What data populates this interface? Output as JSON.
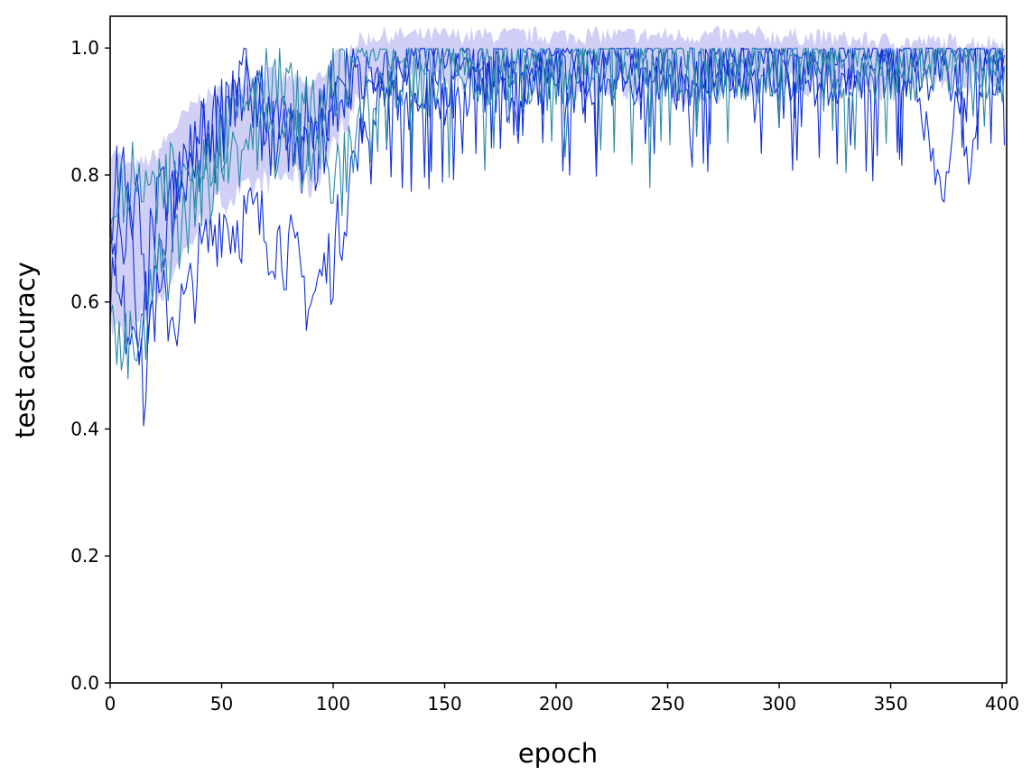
{
  "chart_data": {
    "type": "line",
    "title": "",
    "xlabel": "epoch",
    "ylabel": "test accuracy",
    "xlim": [
      0,
      402
    ],
    "ylim": [
      0,
      1.05
    ],
    "xticks": [
      0,
      50,
      100,
      150,
      200,
      250,
      300,
      350,
      400
    ],
    "xtick_labels": [
      "0",
      "50",
      "100",
      "150",
      "200",
      "250",
      "300",
      "350",
      "400"
    ],
    "yticks": [
      0.0,
      0.2,
      0.4,
      0.6,
      0.8,
      1.0
    ],
    "ytick_labels": [
      "0.0",
      "0.2",
      "0.4",
      "0.6",
      "0.8",
      "1.0"
    ],
    "grid": false,
    "legend": "none",
    "colors": {
      "series_a": "#1030d8",
      "series_b": "#2a8aa8",
      "band_fill": "#c8c8f4"
    },
    "band": {
      "x": [
        0,
        10,
        20,
        30,
        40,
        50,
        60,
        70,
        80,
        90,
        100,
        110,
        120,
        150,
        200,
        250,
        300,
        350,
        400
      ],
      "low": [
        0.56,
        0.55,
        0.6,
        0.66,
        0.72,
        0.76,
        0.77,
        0.79,
        0.8,
        0.78,
        0.84,
        0.92,
        0.95,
        0.95,
        0.94,
        0.93,
        0.94,
        0.94,
        0.95
      ],
      "high": [
        0.84,
        0.81,
        0.83,
        0.88,
        0.92,
        0.93,
        0.95,
        0.96,
        0.95,
        0.94,
        0.98,
        1.01,
        1.02,
        1.02,
        1.02,
        1.02,
        1.02,
        1.01,
        1.01
      ]
    },
    "series": [
      {
        "color": "#1030d8",
        "x": [
          0,
          3,
          6,
          9,
          12,
          15,
          20,
          25,
          30,
          35,
          40,
          45,
          50,
          55,
          60,
          65,
          70,
          75,
          80,
          85,
          90,
          95,
          100,
          105,
          110,
          115,
          120,
          125,
          130,
          135,
          140,
          145,
          150,
          160,
          170,
          180,
          190,
          200,
          220,
          240,
          260,
          280,
          300,
          320,
          340,
          360,
          374,
          380,
          390,
          400
        ],
        "y": [
          0.8,
          0.59,
          0.58,
          0.58,
          0.58,
          0.58,
          0.59,
          0.59,
          0.58,
          0.6,
          0.66,
          0.7,
          0.74,
          0.72,
          0.73,
          0.73,
          0.71,
          0.7,
          0.68,
          0.64,
          0.6,
          0.64,
          0.67,
          0.75,
          0.84,
          0.88,
          0.93,
          0.96,
          0.98,
          1.0,
          1.0,
          1.0,
          1.0,
          1.0,
          1.0,
          1.0,
          1.0,
          1.0,
          1.0,
          1.0,
          1.0,
          1.0,
          1.0,
          1.0,
          1.0,
          1.0,
          1.0,
          1.0,
          1.0,
          1.0
        ]
      },
      {
        "color": "#1030d8",
        "x": [
          0,
          3,
          6,
          9,
          12,
          15,
          20,
          25,
          30,
          35,
          40,
          45,
          50,
          55,
          60,
          65,
          70,
          75,
          80,
          85,
          90,
          95,
          100,
          105,
          110,
          115,
          120,
          125,
          130,
          135,
          140,
          145,
          150,
          160,
          170,
          180,
          190,
          200,
          210,
          220,
          240,
          260,
          280,
          300,
          320,
          340,
          360,
          374,
          380,
          390,
          400
        ],
        "y": [
          0.62,
          0.74,
          0.8,
          0.7,
          0.75,
          0.62,
          0.72,
          0.78,
          0.74,
          0.8,
          0.84,
          0.88,
          0.9,
          0.94,
          0.96,
          0.9,
          0.88,
          0.85,
          0.86,
          0.84,
          0.83,
          0.85,
          0.9,
          0.94,
          0.97,
          0.95,
          0.93,
          0.96,
          0.9,
          0.95,
          0.92,
          0.94,
          0.9,
          0.93,
          0.95,
          0.92,
          0.94,
          0.96,
          0.93,
          0.95,
          0.96,
          0.94,
          0.95,
          0.97,
          0.95,
          0.96,
          0.97,
          0.73,
          0.95,
          0.97,
          0.96
        ]
      },
      {
        "color": "#1030d8",
        "x": [
          0,
          3,
          6,
          9,
          12,
          15,
          20,
          25,
          30,
          35,
          40,
          45,
          50,
          55,
          60,
          65,
          70,
          75,
          80,
          85,
          90,
          95,
          100,
          105,
          110,
          115,
          120,
          125,
          130,
          135,
          140,
          145,
          150,
          160,
          170,
          180,
          190,
          200,
          220,
          240,
          260,
          280,
          300,
          320,
          340,
          360,
          380,
          385,
          390,
          400
        ],
        "y": [
          0.7,
          0.82,
          0.66,
          0.75,
          0.5,
          0.46,
          0.62,
          0.7,
          0.78,
          0.82,
          0.86,
          0.82,
          0.88,
          0.92,
          0.94,
          0.9,
          0.92,
          0.88,
          0.9,
          0.86,
          0.88,
          0.9,
          0.93,
          0.95,
          0.98,
          0.92,
          0.95,
          0.94,
          0.96,
          0.93,
          0.95,
          0.97,
          0.94,
          0.96,
          0.95,
          0.97,
          0.95,
          0.96,
          0.97,
          0.95,
          0.96,
          0.97,
          0.96,
          0.95,
          0.97,
          0.96,
          0.95,
          0.82,
          0.96,
          0.97
        ]
      },
      {
        "color": "#2a8aa8",
        "x": [
          0,
          3,
          6,
          9,
          12,
          15,
          20,
          25,
          30,
          35,
          40,
          45,
          50,
          55,
          60,
          65,
          70,
          75,
          80,
          85,
          90,
          95,
          100,
          105,
          110,
          115,
          120,
          125,
          130,
          135,
          140,
          150,
          160,
          170,
          180,
          200,
          220,
          240,
          260,
          280,
          300,
          320,
          340,
          360,
          380,
          400
        ],
        "y": [
          0.6,
          0.52,
          0.52,
          0.52,
          0.52,
          0.53,
          0.64,
          0.66,
          0.7,
          0.74,
          0.78,
          0.82,
          0.84,
          0.86,
          0.84,
          0.88,
          0.86,
          0.85,
          0.86,
          0.84,
          0.86,
          0.84,
          0.78,
          0.8,
          0.87,
          0.93,
          0.95,
          0.97,
          0.94,
          0.96,
          0.93,
          0.95,
          0.97,
          0.94,
          0.96,
          0.95,
          0.96,
          0.97,
          0.95,
          0.96,
          0.95,
          0.97,
          0.95,
          0.96,
          0.97,
          0.96
        ]
      },
      {
        "color": "#2a8aa8",
        "x": [
          0,
          3,
          6,
          9,
          12,
          15,
          20,
          25,
          30,
          35,
          40,
          45,
          50,
          55,
          60,
          65,
          70,
          75,
          80,
          85,
          90,
          95,
          100,
          105,
          110,
          115,
          120,
          125,
          130,
          135,
          140,
          150,
          160,
          170,
          180,
          200,
          220,
          240,
          260,
          280,
          300,
          320,
          340,
          360,
          380,
          400
        ],
        "y": [
          0.75,
          0.78,
          0.74,
          0.8,
          0.76,
          0.8,
          0.74,
          0.78,
          0.82,
          0.78,
          0.84,
          0.8,
          0.86,
          0.9,
          0.92,
          0.96,
          0.98,
          0.94,
          0.92,
          0.9,
          0.88,
          0.92,
          0.95,
          0.97,
          0.99,
          1.0,
          1.0,
          1.0,
          1.0,
          1.0,
          1.0,
          1.0,
          1.0,
          1.0,
          1.0,
          1.0,
          1.0,
          1.0,
          1.0,
          1.0,
          1.0,
          1.0,
          1.0,
          1.0,
          1.0,
          1.0
        ]
      }
    ]
  }
}
